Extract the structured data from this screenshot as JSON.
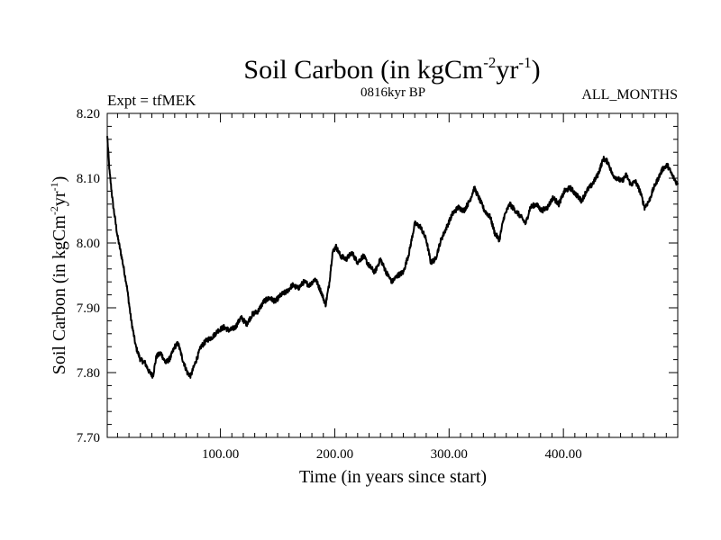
{
  "chart_data": {
    "type": "line",
    "title_main": "Soil Carbon (in kgCm",
    "title_sup1": "-2",
    "title_mid": "yr",
    "title_sup2": "-1",
    "title_end": ")",
    "experiment": "Expt = tfMEK",
    "period": "0816kyr BP",
    "months": "ALL_MONTHS",
    "xlabel": "Time (in years since start)",
    "ylabel_main": "Soil Carbon (in kgCm",
    "ylabel_sup1": "-2",
    "ylabel_mid": "yr",
    "ylabel_sup2": "-1",
    "ylabel_end": ")",
    "xlim": [
      1,
      500
    ],
    "ylim": [
      7.7,
      8.2
    ],
    "xticks": [
      {
        "value": 100,
        "label": "100.00"
      },
      {
        "value": 200,
        "label": "200.00"
      },
      {
        "value": 300,
        "label": "300.00"
      },
      {
        "value": 400,
        "label": "400.00"
      }
    ],
    "yticks": [
      {
        "value": 7.7,
        "label": "7.70"
      },
      {
        "value": 7.8,
        "label": "7.80"
      },
      {
        "value": 7.9,
        "label": "7.90"
      },
      {
        "value": 8.0,
        "label": "8.00"
      },
      {
        "value": 8.1,
        "label": "8.10"
      },
      {
        "value": 8.2,
        "label": "8.20"
      }
    ],
    "series": [
      {
        "name": "Soil Carbon",
        "color": "#000000",
        "noise": 0.004,
        "points": [
          [
            1,
            8.165
          ],
          [
            3,
            8.11
          ],
          [
            6,
            8.06
          ],
          [
            10,
            8.01
          ],
          [
            14,
            7.975
          ],
          [
            18,
            7.935
          ],
          [
            22,
            7.88
          ],
          [
            26,
            7.84
          ],
          [
            30,
            7.82
          ],
          [
            34,
            7.815
          ],
          [
            38,
            7.8
          ],
          [
            41,
            7.795
          ],
          [
            44,
            7.825
          ],
          [
            48,
            7.83
          ],
          [
            52,
            7.815
          ],
          [
            56,
            7.822
          ],
          [
            60,
            7.84
          ],
          [
            63,
            7.845
          ],
          [
            67,
            7.82
          ],
          [
            71,
            7.8
          ],
          [
            74,
            7.795
          ],
          [
            78,
            7.815
          ],
          [
            83,
            7.84
          ],
          [
            88,
            7.85
          ],
          [
            93,
            7.855
          ],
          [
            98,
            7.865
          ],
          [
            103,
            7.87
          ],
          [
            108,
            7.865
          ],
          [
            113,
            7.87
          ],
          [
            118,
            7.885
          ],
          [
            123,
            7.875
          ],
          [
            128,
            7.89
          ],
          [
            133,
            7.895
          ],
          [
            138,
            7.91
          ],
          [
            143,
            7.915
          ],
          [
            148,
            7.91
          ],
          [
            153,
            7.92
          ],
          [
            158,
            7.925
          ],
          [
            163,
            7.935
          ],
          [
            168,
            7.93
          ],
          [
            173,
            7.94
          ],
          [
            178,
            7.935
          ],
          [
            183,
            7.945
          ],
          [
            188,
            7.925
          ],
          [
            192,
            7.905
          ],
          [
            195,
            7.935
          ],
          [
            198,
            7.985
          ],
          [
            201,
            7.995
          ],
          [
            205,
            7.98
          ],
          [
            210,
            7.975
          ],
          [
            215,
            7.985
          ],
          [
            220,
            7.97
          ],
          [
            225,
            7.98
          ],
          [
            230,
            7.965
          ],
          [
            235,
            7.955
          ],
          [
            240,
            7.975
          ],
          [
            245,
            7.955
          ],
          [
            250,
            7.94
          ],
          [
            255,
            7.95
          ],
          [
            260,
            7.955
          ],
          [
            265,
            7.985
          ],
          [
            270,
            8.03
          ],
          [
            275,
            8.025
          ],
          [
            280,
            8.005
          ],
          [
            284,
            7.97
          ],
          [
            288,
            7.975
          ],
          [
            293,
            8.005
          ],
          [
            298,
            8.025
          ],
          [
            303,
            8.045
          ],
          [
            308,
            8.055
          ],
          [
            313,
            8.05
          ],
          [
            318,
            8.065
          ],
          [
            322,
            8.085
          ],
          [
            326,
            8.07
          ],
          [
            331,
            8.05
          ],
          [
            336,
            8.04
          ],
          [
            340,
            8.015
          ],
          [
            344,
            8.005
          ],
          [
            348,
            8.04
          ],
          [
            353,
            8.06
          ],
          [
            358,
            8.05
          ],
          [
            363,
            8.04
          ],
          [
            367,
            8.03
          ],
          [
            371,
            8.055
          ],
          [
            376,
            8.06
          ],
          [
            381,
            8.05
          ],
          [
            386,
            8.055
          ],
          [
            391,
            8.07
          ],
          [
            396,
            8.06
          ],
          [
            401,
            8.08
          ],
          [
            406,
            8.085
          ],
          [
            411,
            8.075
          ],
          [
            416,
            8.065
          ],
          [
            420,
            8.08
          ],
          [
            425,
            8.09
          ],
          [
            430,
            8.105
          ],
          [
            435,
            8.13
          ],
          [
            439,
            8.125
          ],
          [
            443,
            8.105
          ],
          [
            447,
            8.1
          ],
          [
            451,
            8.095
          ],
          [
            455,
            8.105
          ],
          [
            459,
            8.09
          ],
          [
            463,
            8.095
          ],
          [
            467,
            8.08
          ],
          [
            471,
            8.055
          ],
          [
            475,
            8.065
          ],
          [
            479,
            8.085
          ],
          [
            483,
            8.1
          ],
          [
            487,
            8.115
          ],
          [
            491,
            8.12
          ],
          [
            495,
            8.105
          ],
          [
            500,
            8.09
          ]
        ]
      }
    ]
  }
}
